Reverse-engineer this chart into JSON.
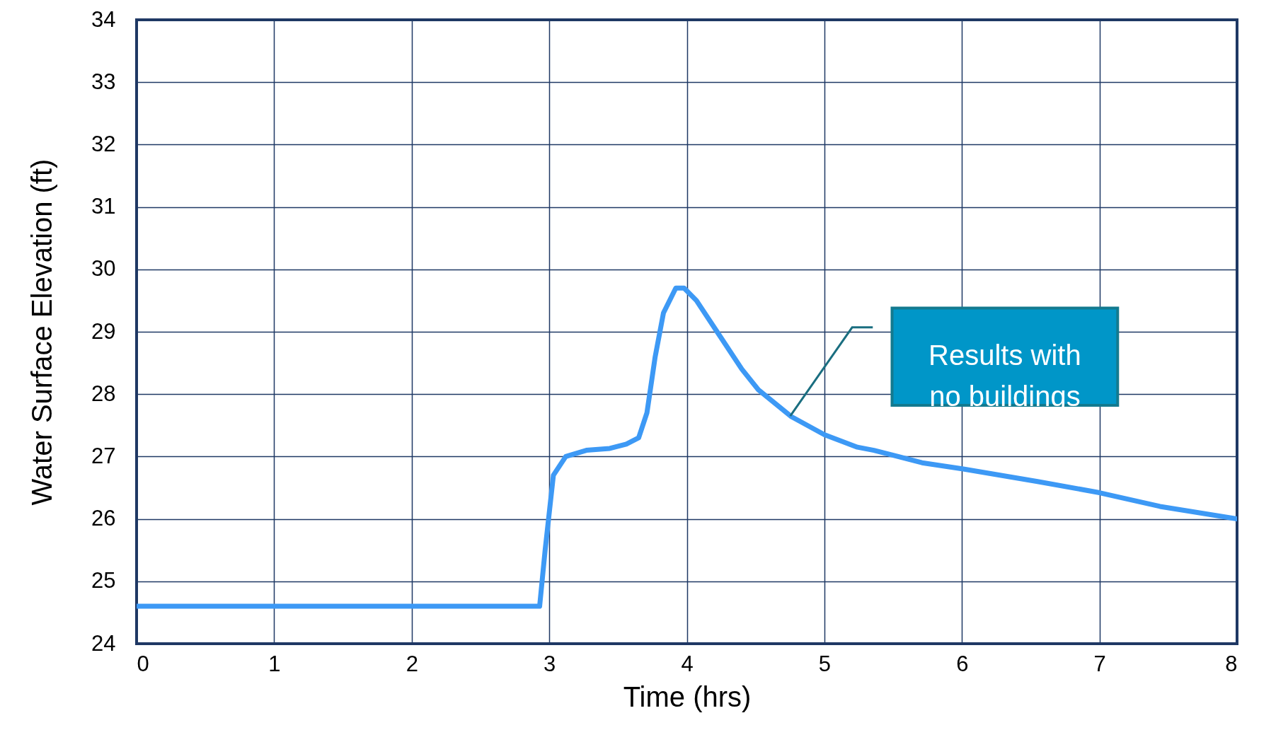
{
  "chart_data": {
    "type": "line",
    "xlabel": "Time (hrs)",
    "ylabel": "Water Surface Elevation (ft)",
    "x": [
      0,
      2.93,
      2.97,
      3.03,
      3.12,
      3.27,
      3.44,
      3.56,
      3.65,
      3.71,
      3.77,
      3.83,
      3.92,
      3.98,
      4.07,
      4.22,
      4.4,
      4.52,
      4.76,
      5.0,
      5.24,
      5.36,
      5.71,
      6.01,
      6.55,
      7.0,
      7.44,
      8.0
    ],
    "series": [
      {
        "color": "#3d99f5",
        "values": [
          24.6,
          24.6,
          25.5,
          26.7,
          27.0,
          27.1,
          27.13,
          27.2,
          27.3,
          27.7,
          28.6,
          29.3,
          29.7,
          29.7,
          29.5,
          29.0,
          28.4,
          28.07,
          27.64,
          27.35,
          27.15,
          27.1,
          26.9,
          26.8,
          26.6,
          26.42,
          26.2,
          26.0
        ]
      }
    ],
    "xlim": [
      0,
      8
    ],
    "xticks": [
      0,
      1,
      2,
      3,
      4,
      5,
      6,
      7,
      8
    ],
    "ylim": [
      24,
      34
    ],
    "yticks": [
      24,
      25,
      26,
      27,
      28,
      29,
      30,
      31,
      32,
      33,
      34
    ],
    "grid": true,
    "annotations": [
      "Results with no buildings"
    ]
  }
}
